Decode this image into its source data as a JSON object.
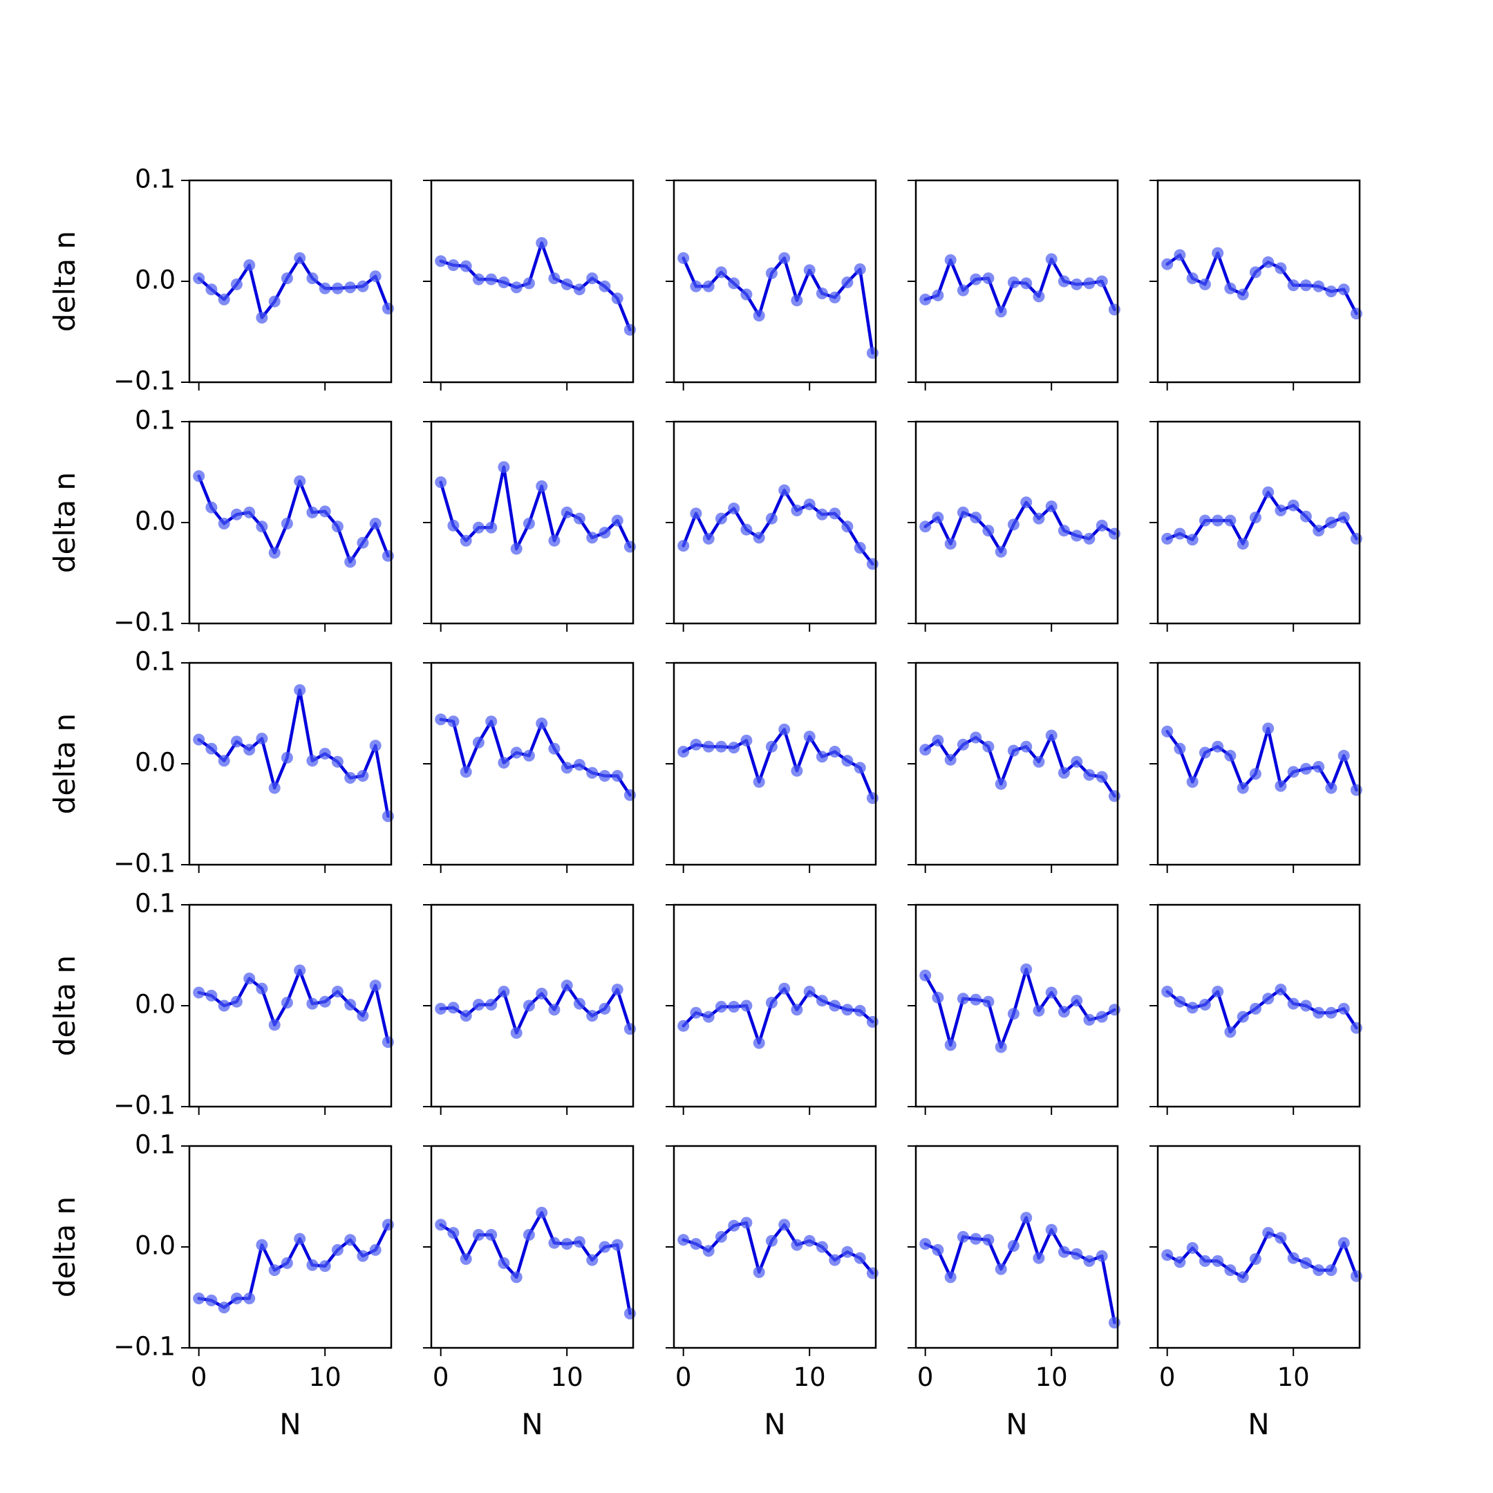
{
  "chart_data": {
    "type": "line",
    "layout": {
      "rows": 5,
      "cols": 5
    },
    "xlabel": "N",
    "ylabel": "delta n",
    "xlim": [
      -0.75,
      15.25
    ],
    "ylim": [
      -0.1,
      0.1
    ],
    "xticks": [
      0,
      10
    ],
    "yticks": [
      -0.1,
      0.0,
      0.1
    ],
    "xtick_labels": [
      "0",
      "10"
    ],
    "ytick_labels": [
      "−0.1",
      "0.0",
      "0.1"
    ],
    "x": [
      0,
      1,
      2,
      3,
      4,
      5,
      6,
      7,
      8,
      9,
      10,
      11,
      12,
      13,
      14,
      15
    ],
    "grid": false,
    "colors": {
      "line": "#0000dd",
      "marker": "#4a5bf0"
    },
    "panels": [
      [
        0.003,
        -0.008,
        -0.018,
        -0.003,
        0.016,
        -0.036,
        -0.02,
        0.003,
        0.023,
        0.003,
        -0.007,
        -0.007,
        -0.006,
        -0.005,
        0.005,
        -0.027
      ],
      [
        0.02,
        0.016,
        0.015,
        0.002,
        0.002,
        -0.001,
        -0.006,
        -0.002,
        0.038,
        0.003,
        -0.003,
        -0.008,
        0.003,
        -0.005,
        -0.017,
        -0.048
      ],
      [
        0.023,
        -0.005,
        -0.005,
        0.009,
        -0.002,
        -0.013,
        -0.034,
        0.008,
        0.023,
        -0.019,
        0.011,
        -0.012,
        -0.016,
        -0.001,
        0.012,
        -0.071
      ],
      [
        -0.018,
        -0.014,
        0.021,
        -0.009,
        0.002,
        0.003,
        -0.03,
        -0.001,
        -0.002,
        -0.015,
        0.022,
        0.0,
        -0.003,
        -0.002,
        0.0,
        -0.028
      ],
      [
        0.017,
        0.026,
        0.003,
        -0.003,
        0.028,
        -0.007,
        -0.013,
        0.009,
        0.019,
        0.013,
        -0.004,
        -0.004,
        -0.005,
        -0.01,
        -0.008,
        -0.032
      ],
      [
        0.046,
        0.015,
        -0.001,
        0.008,
        0.01,
        -0.004,
        -0.03,
        -0.001,
        0.041,
        0.01,
        0.011,
        -0.004,
        -0.039,
        -0.02,
        -0.001,
        -0.033
      ],
      [
        0.04,
        -0.003,
        -0.018,
        -0.005,
        -0.005,
        0.055,
        -0.026,
        -0.001,
        0.036,
        -0.018,
        0.01,
        0.004,
        -0.015,
        -0.01,
        0.002,
        -0.024
      ],
      [
        -0.023,
        0.009,
        -0.016,
        0.004,
        0.014,
        -0.007,
        -0.015,
        0.004,
        0.032,
        0.012,
        0.018,
        0.008,
        0.009,
        -0.004,
        -0.025,
        -0.041
      ],
      [
        -0.004,
        0.005,
        -0.021,
        0.01,
        0.005,
        -0.008,
        -0.029,
        -0.002,
        0.02,
        0.004,
        0.016,
        -0.008,
        -0.013,
        -0.016,
        -0.003,
        -0.011
      ],
      [
        -0.016,
        -0.011,
        -0.017,
        0.002,
        0.002,
        0.002,
        -0.021,
        0.005,
        0.03,
        0.012,
        0.017,
        0.006,
        -0.008,
        0.0,
        0.005,
        -0.016
      ],
      [
        0.024,
        0.015,
        0.003,
        0.022,
        0.014,
        0.025,
        -0.024,
        0.006,
        0.073,
        0.003,
        0.01,
        0.002,
        -0.014,
        -0.012,
        0.018,
        -0.052
      ],
      [
        0.044,
        0.042,
        -0.008,
        0.021,
        0.042,
        0.001,
        0.011,
        0.008,
        0.04,
        0.015,
        -0.004,
        -0.001,
        -0.009,
        -0.012,
        -0.012,
        -0.031
      ],
      [
        0.012,
        0.019,
        0.017,
        0.017,
        0.016,
        0.023,
        -0.018,
        0.017,
        0.034,
        -0.007,
        0.027,
        0.007,
        0.012,
        0.003,
        -0.004,
        -0.034
      ],
      [
        0.014,
        0.023,
        0.004,
        0.019,
        0.026,
        0.017,
        -0.02,
        0.013,
        0.017,
        0.002,
        0.028,
        -0.009,
        0.002,
        -0.011,
        -0.013,
        -0.032
      ],
      [
        0.032,
        0.015,
        -0.018,
        0.011,
        0.017,
        0.008,
        -0.024,
        -0.01,
        0.035,
        -0.022,
        -0.008,
        -0.005,
        -0.003,
        -0.024,
        0.008,
        -0.026
      ],
      [
        0.013,
        0.01,
        0.0,
        0.004,
        0.027,
        0.017,
        -0.019,
        0.003,
        0.035,
        0.002,
        0.004,
        0.014,
        0.001,
        -0.01,
        0.02,
        -0.036
      ],
      [
        -0.003,
        -0.002,
        -0.01,
        0.001,
        0.001,
        0.014,
        -0.027,
        0.0,
        0.012,
        -0.004,
        0.02,
        0.002,
        -0.01,
        -0.003,
        0.016,
        -0.023
      ],
      [
        -0.02,
        -0.007,
        -0.011,
        -0.001,
        -0.001,
        0.0,
        -0.037,
        0.003,
        0.017,
        -0.004,
        0.014,
        0.005,
        0.0,
        -0.004,
        -0.005,
        -0.016
      ],
      [
        0.03,
        0.008,
        -0.039,
        0.007,
        0.006,
        0.004,
        -0.041,
        -0.008,
        0.036,
        -0.005,
        0.013,
        -0.006,
        0.005,
        -0.014,
        -0.011,
        -0.004
      ],
      [
        0.014,
        0.004,
        -0.002,
        0.001,
        0.014,
        -0.026,
        -0.011,
        -0.003,
        0.007,
        0.016,
        0.002,
        0.0,
        -0.007,
        -0.007,
        -0.003,
        -0.022
      ],
      [
        -0.051,
        -0.053,
        -0.06,
        -0.051,
        -0.051,
        0.002,
        -0.023,
        -0.016,
        0.008,
        -0.018,
        -0.019,
        -0.003,
        0.007,
        -0.009,
        -0.003,
        0.022
      ],
      [
        0.022,
        0.014,
        -0.012,
        0.012,
        0.012,
        -0.016,
        -0.03,
        0.012,
        0.034,
        0.004,
        0.003,
        0.005,
        -0.013,
        0.0,
        0.002,
        -0.066
      ],
      [
        0.007,
        0.003,
        -0.004,
        0.01,
        0.021,
        0.024,
        -0.025,
        0.006,
        0.022,
        0.002,
        0.006,
        0.0,
        -0.013,
        -0.005,
        -0.011,
        -0.026
      ],
      [
        0.003,
        -0.003,
        -0.03,
        0.01,
        0.008,
        0.007,
        -0.022,
        0.001,
        0.029,
        -0.011,
        0.017,
        -0.005,
        -0.007,
        -0.014,
        -0.009,
        -0.075
      ],
      [
        -0.008,
        -0.015,
        -0.001,
        -0.014,
        -0.014,
        -0.023,
        -0.03,
        -0.012,
        0.014,
        0.009,
        -0.011,
        -0.016,
        -0.023,
        -0.023,
        0.004,
        -0.029
      ]
    ]
  }
}
